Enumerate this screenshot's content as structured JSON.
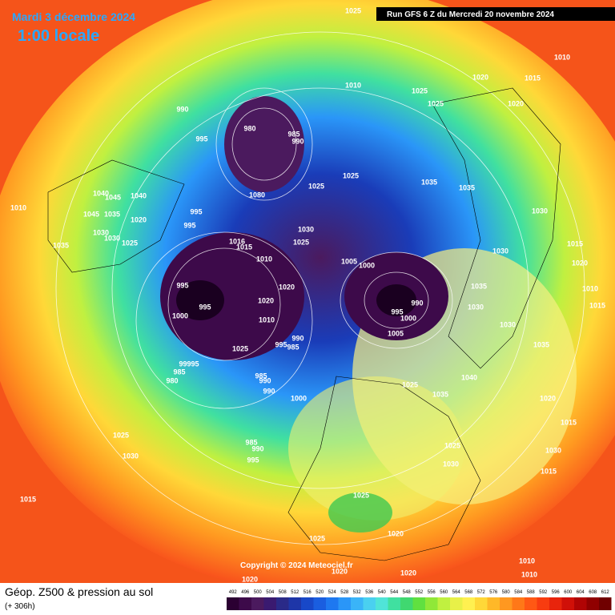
{
  "header": {
    "date": "Mardi 3 décembre 2024",
    "time": "1:00 locale",
    "run": "Run GFS 6 Z du Mercredi 20 novembre 2024"
  },
  "copyright": "Copyright © 2024 Meteociel.fr",
  "footer": {
    "title": "Géop. Z500 & pression au sol",
    "lead": "(+ 306h)"
  },
  "scale": {
    "labels": [
      492,
      496,
      500,
      504,
      508,
      512,
      516,
      520,
      524,
      528,
      532,
      536,
      540,
      544,
      548,
      552,
      556,
      560,
      564,
      568,
      572,
      576,
      580,
      584,
      588,
      592,
      596,
      600,
      604,
      608,
      612
    ],
    "colors": [
      "#2b0032",
      "#3d0a4a",
      "#4b1a5e",
      "#3a1a70",
      "#2a2a88",
      "#1e36a8",
      "#1848c8",
      "#1a5ee0",
      "#1e78f0",
      "#2a96f8",
      "#3ab4f8",
      "#4ad0f0",
      "#50e4d8",
      "#40e0a0",
      "#40d870",
      "#60e040",
      "#90e838",
      "#c0f040",
      "#e8f048",
      "#fff050",
      "#ffd838",
      "#ffb828",
      "#ff9820",
      "#ff7818",
      "#ff5814",
      "#f83c10",
      "#e8240c",
      "#d01008",
      "#b00404",
      "#900000",
      "#700000"
    ]
  },
  "isobars": [
    "1025",
    "1010",
    "1020",
    "1015",
    "1010",
    "1025",
    "1025",
    "1020",
    "990",
    "980",
    "985",
    "990",
    "995",
    "1025",
    "1035",
    "1025",
    "1035",
    "1040",
    "1045",
    "1040",
    "1080",
    "1010",
    "1030",
    "995",
    "1045",
    "1035",
    "1020",
    "995",
    "1030",
    "1030",
    "1030",
    "1025",
    "1035",
    "1016",
    "1015",
    "1025",
    "1030",
    "1015",
    "1010",
    "1005",
    "1000",
    "1020",
    "995",
    "1020",
    "1035",
    "1010",
    "990",
    "995",
    "1020",
    "1030",
    "1015",
    "995",
    "1000",
    "1000",
    "1010",
    "1030",
    "1005",
    "990",
    "995",
    "985",
    "1025",
    "1035",
    "99995",
    "985",
    "985",
    "990",
    "980",
    "1040",
    "1025",
    "990",
    "1000",
    "1035",
    "1020",
    "1015",
    "1025",
    "985",
    "990",
    "1025",
    "1030",
    "1030",
    "995",
    "1030",
    "1015",
    "1015",
    "1025",
    "1020",
    "1025",
    "1010",
    "1010",
    "1020",
    "1020",
    "1020"
  ]
}
